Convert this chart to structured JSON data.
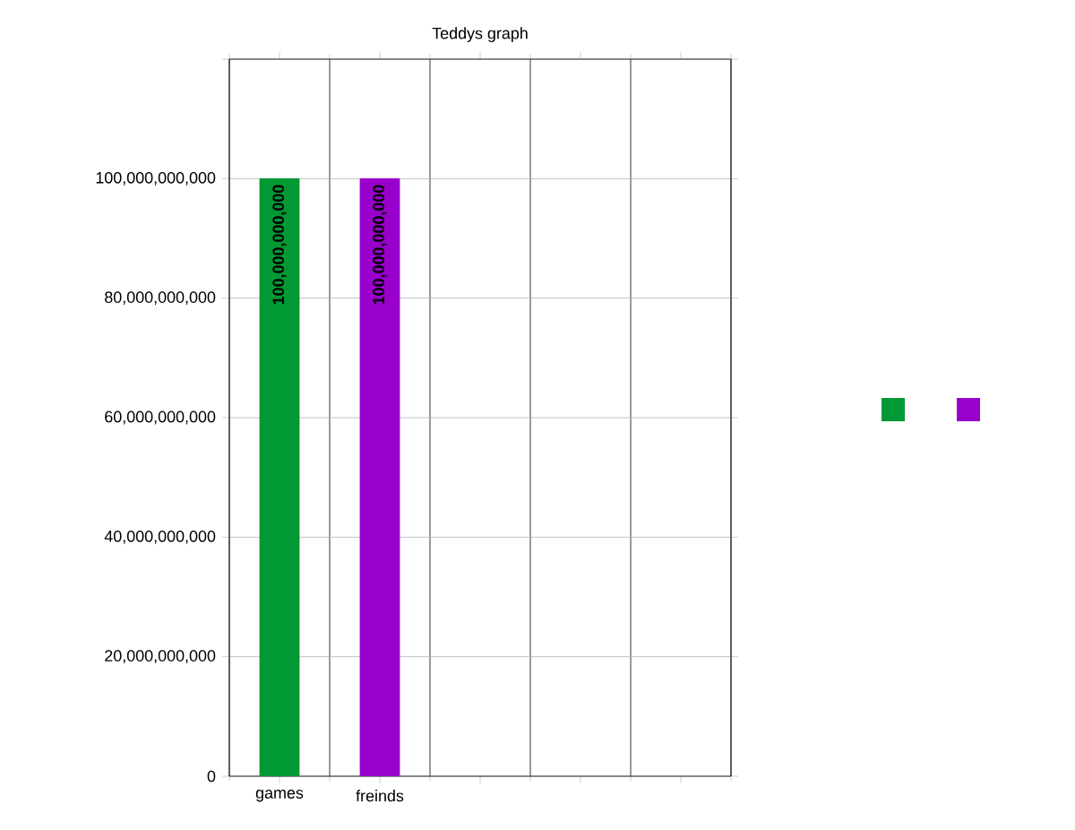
{
  "chart_data": {
    "type": "bar",
    "title": "Teddys graph",
    "categories": [
      "games",
      "freinds",
      null,
      null,
      null
    ],
    "series": [
      {
        "color": "#009933",
        "values": [
          100000000000,
          null,
          null,
          null,
          null
        ],
        "value_labels": [
          "100,000,000,000",
          null,
          null,
          null,
          null
        ]
      },
      {
        "color": "#9900cc",
        "values": [
          null,
          100000000000,
          null,
          null,
          null
        ],
        "value_labels": [
          null,
          "100,000,000,000",
          null,
          null,
          null
        ]
      }
    ],
    "ylim": [
      0,
      120000000000
    ],
    "yticks": [
      {
        "value": 0,
        "label": "0"
      },
      {
        "value": 20000000000,
        "label": "20,000,000,000"
      },
      {
        "value": 40000000000,
        "label": "40,000,000,000"
      },
      {
        "value": 60000000000,
        "label": "60,000,000,000"
      },
      {
        "value": 80000000000,
        "label": "80,000,000,000"
      },
      {
        "value": 100000000000,
        "label": "100,000,000,000"
      },
      {
        "value": 120000000000,
        "label": null
      }
    ],
    "grid": true
  }
}
